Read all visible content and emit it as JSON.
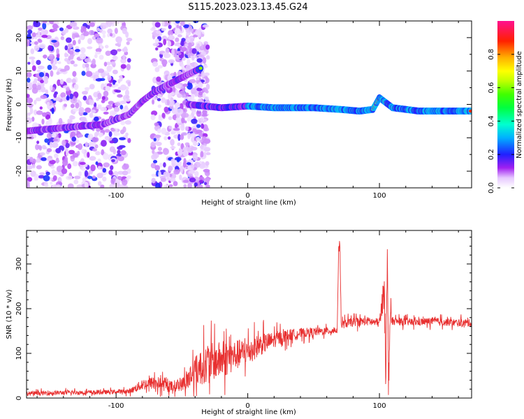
{
  "title": "S115.2023.023.13.45.G24",
  "chart_data": [
    {
      "type": "heatmap",
      "name": "spectrogram",
      "xlabel": "Height of straight line (km)",
      "ylabel": "Frequency (Hz)",
      "xlim": [
        -168,
        170
      ],
      "ylim": [
        -25,
        25
      ],
      "xticks": [
        -100,
        0,
        100
      ],
      "xtick_labels": [
        "-100",
        "0",
        "100"
      ],
      "yticks": [
        -20,
        -10,
        0,
        10,
        20
      ],
      "ytick_labels": [
        "-20",
        "-10",
        "0",
        "10",
        "20"
      ],
      "colorbar": {
        "label": "Normalized spectral amplitude",
        "range": [
          0,
          1
        ],
        "ticks": [
          0.0,
          0.2,
          0.4,
          0.6,
          0.8
        ],
        "tick_labels": [
          "0.0",
          "0.2",
          "0.4",
          "0.6",
          "0.8"
        ],
        "colormap": "gist_ncar_r"
      },
      "signal_track": [
        {
          "x": -168,
          "f": -8
        },
        {
          "x": -140,
          "f": -7
        },
        {
          "x": -110,
          "f": -6
        },
        {
          "x": -90,
          "f": -3
        },
        {
          "x": -80,
          "f": 1
        },
        {
          "x": -70,
          "f": 4
        },
        {
          "x": -55,
          "f": 7
        },
        {
          "x": -45,
          "f": 9
        },
        {
          "x": -35,
          "f": 11
        },
        {
          "x": -45,
          "f": 0
        },
        {
          "x": -20,
          "f": -1
        },
        {
          "x": 0,
          "f": -0.5
        },
        {
          "x": 20,
          "f": -1
        },
        {
          "x": 50,
          "f": -1
        },
        {
          "x": 70,
          "f": -1.5
        },
        {
          "x": 85,
          "f": -2
        },
        {
          "x": 95,
          "f": -1.5
        },
        {
          "x": 100,
          "f": 2
        },
        {
          "x": 110,
          "f": -1
        },
        {
          "x": 130,
          "f": -2
        },
        {
          "x": 170,
          "f": -2
        }
      ]
    },
    {
      "type": "line",
      "name": "snr",
      "xlabel": "Height of straight line (km)",
      "ylabel": "SNR (10 * v/v)",
      "xlim": [
        -168,
        170
      ],
      "ylim": [
        0,
        375
      ],
      "xticks": [
        -100,
        0,
        100
      ],
      "xtick_labels": [
        "-100",
        "0",
        "100"
      ],
      "yticks": [
        0,
        100,
        200,
        300
      ],
      "ytick_labels": [
        "0",
        "100",
        "200",
        "300"
      ],
      "color": "#e83030",
      "x": [
        -168,
        -140,
        -110,
        -90,
        -80,
        -70,
        -60,
        -50,
        -40,
        -30,
        -20,
        -10,
        0,
        10,
        20,
        30,
        40,
        50,
        60,
        68,
        69,
        70,
        71,
        72,
        80,
        90,
        100,
        104,
        105,
        106,
        107,
        108,
        110,
        120,
        130,
        140,
        150,
        160,
        170
      ],
      "y": [
        10,
        12,
        13,
        15,
        30,
        35,
        25,
        30,
        60,
        80,
        85,
        95,
        105,
        120,
        130,
        140,
        145,
        148,
        150,
        152,
        340,
        345,
        160,
        165,
        170,
        172,
        168,
        250,
        60,
        310,
        40,
        180,
        172,
        170,
        170,
        172,
        170,
        168,
        168
      ],
      "noise_amplitude": [
        7,
        7,
        7,
        7,
        18,
        22,
        18,
        20,
        55,
        60,
        60,
        50,
        40,
        35,
        25,
        20,
        16,
        14,
        12,
        12,
        12,
        12,
        12,
        14,
        14,
        14,
        14,
        60,
        60,
        60,
        60,
        40,
        12,
        12,
        12,
        12,
        12,
        12,
        12
      ]
    }
  ]
}
